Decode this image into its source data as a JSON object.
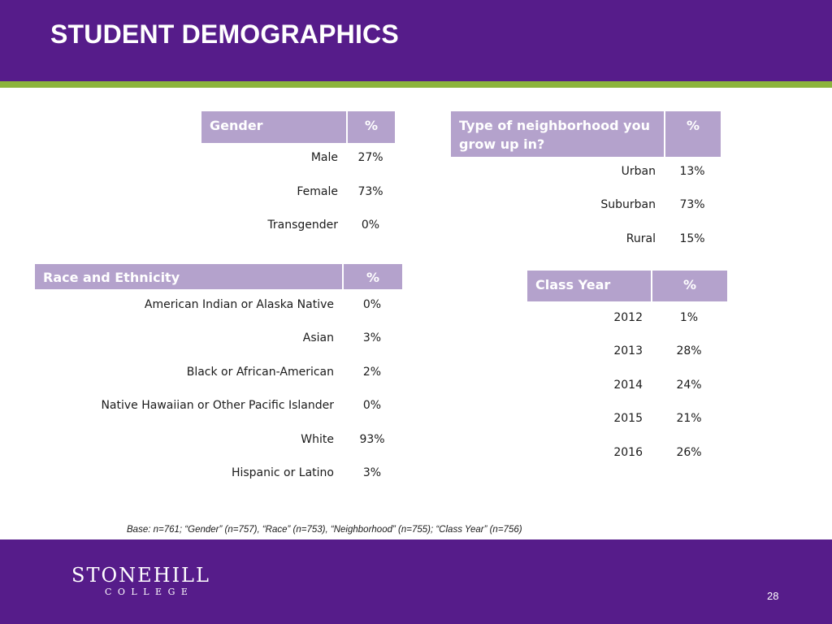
{
  "slide": {
    "title": "STUDENT DEMOGRAPHICS",
    "base_note": "Base: n=761; “Gender” (n=757), “Race” (n=753), “Neighborhood” (n=755); “Class Year” (n=756)",
    "page_number": "28",
    "logo": {
      "main": "STONEHILL",
      "sub": "COLLEGE"
    },
    "colors": {
      "header_purple": "#561c8a",
      "accent_green": "#8cb43c",
      "table_header": "#b4a2cc"
    }
  },
  "gender": {
    "header": "Gender",
    "pct_header": "%",
    "rows": [
      {
        "label": "Male",
        "value": "27%"
      },
      {
        "label": "Female",
        "value": "73%"
      },
      {
        "label": "Transgender",
        "value": "0%"
      }
    ]
  },
  "neighborhood": {
    "header": "Type of neighborhood you grow up in?",
    "pct_header": "%",
    "rows": [
      {
        "label": "Urban",
        "value": "13%"
      },
      {
        "label": "Suburban",
        "value": "73%"
      },
      {
        "label": "Rural",
        "value": "15%"
      }
    ]
  },
  "race": {
    "header": "Race and Ethnicity",
    "pct_header": "%",
    "rows": [
      {
        "label": "American Indian or Alaska Native",
        "value": "0%"
      },
      {
        "label": "Asian",
        "value": "3%"
      },
      {
        "label": "Black or African-American",
        "value": "2%"
      },
      {
        "label": "Native Hawaiian or Other Pacific Islander",
        "value": "0%"
      },
      {
        "label": "White",
        "value": "93%"
      },
      {
        "label": "Hispanic or Latino",
        "value": "3%"
      }
    ]
  },
  "class_year": {
    "header": "Class Year",
    "pct_header": "%",
    "rows": [
      {
        "label": "2012",
        "value": "1%"
      },
      {
        "label": "2013",
        "value": "28%"
      },
      {
        "label": "2014",
        "value": "24%"
      },
      {
        "label": "2015",
        "value": "21%"
      },
      {
        "label": "2016",
        "value": "26%"
      }
    ]
  }
}
